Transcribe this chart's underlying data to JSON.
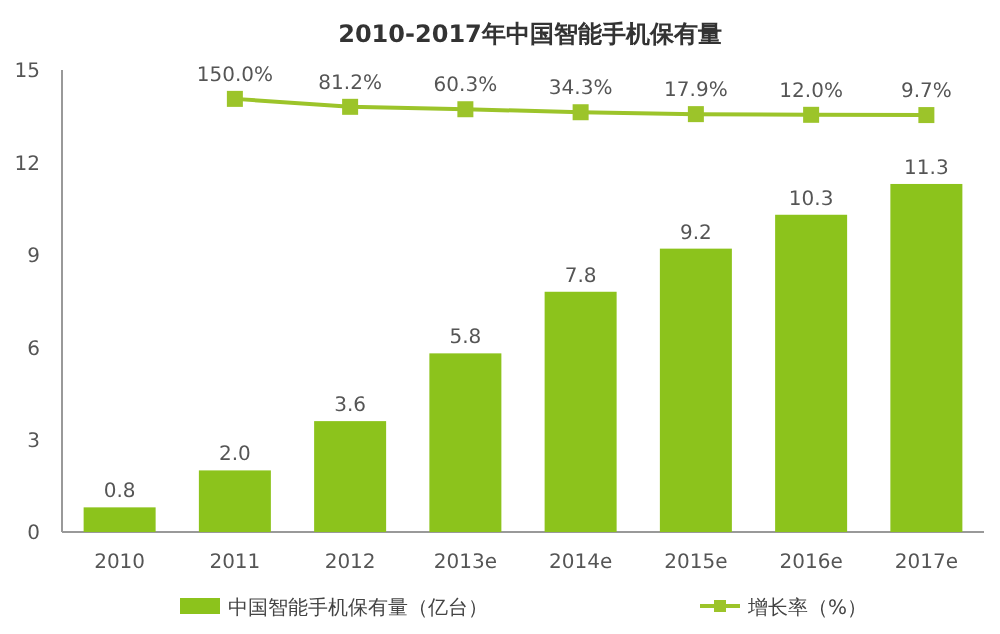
{
  "chart_data": {
    "type": "bar",
    "title": "2010-2017年中国智能手机保有量",
    "categories": [
      "2010",
      "2011",
      "2012",
      "2013e",
      "2014e",
      "2015e",
      "2016e",
      "2017e"
    ],
    "series": [
      {
        "name": "中国智能手机保有量（亿台）",
        "color": "#8cc31c",
        "values": [
          0.8,
          2.0,
          3.6,
          5.8,
          7.8,
          9.2,
          10.3,
          11.3
        ],
        "value_labels": [
          "0.8",
          "2.0",
          "3.6",
          "5.8",
          "7.8",
          "9.2",
          "10.3",
          "11.3"
        ]
      },
      {
        "name": "增长率（%）",
        "type": "line",
        "axis": "y2",
        "color": "#9cc42a",
        "marker": "square",
        "values": [
          null,
          150.0,
          81.2,
          60.3,
          34.3,
          17.9,
          12.0,
          9.7
        ],
        "value_labels": [
          null,
          "150.0%",
          "81.2%",
          "60.3%",
          "34.3%",
          "17.9%",
          "12.0%",
          "9.7%"
        ]
      }
    ],
    "ylim": [
      0,
      15
    ],
    "yticks": [
      0,
      3,
      6,
      9,
      12,
      15
    ],
    "y2lim": [
      -3600,
      400
    ],
    "grid": false,
    "legend": "bottom"
  }
}
